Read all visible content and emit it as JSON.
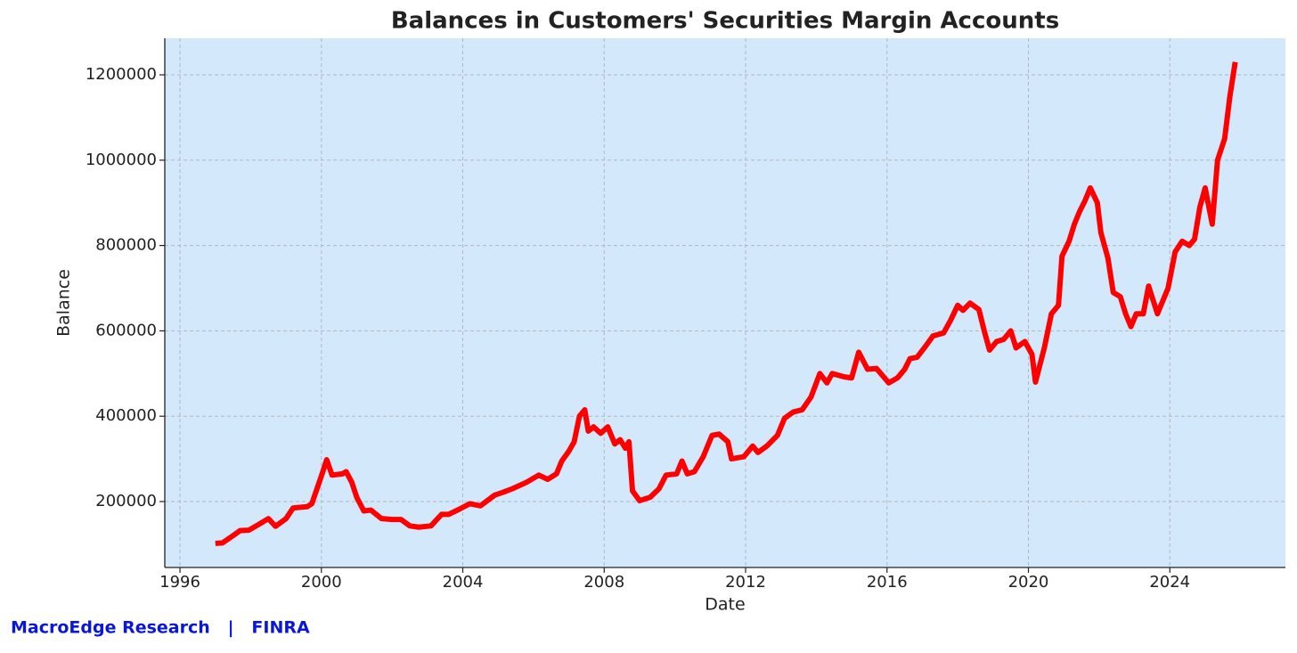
{
  "chart_data": {
    "type": "line",
    "title": "Balances in Customers' Securities Margin Accounts",
    "x_label": "Date",
    "y_label": "Balance",
    "source": "MacroEdge Research   |   FINRA",
    "grid": true,
    "background": "#d4e8fb",
    "xlim": [
      1995.57,
      2027.27
    ],
    "ylim": [
      45500,
      1285600
    ],
    "xticks": [
      1996,
      2000,
      2004,
      2008,
      2012,
      2016,
      2020,
      2024
    ],
    "yticks": [
      200000,
      400000,
      600000,
      800000,
      1000000,
      1200000
    ],
    "x": [
      1997.0,
      1997.2,
      1997.5,
      1997.7,
      1997.95,
      1998.2,
      1998.5,
      1998.7,
      1999.0,
      1999.2,
      1999.6,
      1999.73,
      2000.0,
      2000.15,
      2000.3,
      2000.6,
      2000.7,
      2000.86,
      2001.0,
      2001.2,
      2001.4,
      2001.7,
      2002.0,
      2002.25,
      2002.5,
      2002.75,
      2003.1,
      2003.4,
      2003.6,
      2003.9,
      2004.2,
      2004.5,
      2004.9,
      2005.15,
      2005.4,
      2005.8,
      2006.15,
      2006.4,
      2006.65,
      2006.8,
      2007.0,
      2007.15,
      2007.3,
      2007.45,
      2007.55,
      2007.7,
      2007.9,
      2008.1,
      2008.3,
      2008.45,
      2008.6,
      2008.7,
      2008.8,
      2009.0,
      2009.3,
      2009.55,
      2009.75,
      2010.05,
      2010.2,
      2010.35,
      2010.55,
      2010.8,
      2011.05,
      2011.25,
      2011.5,
      2011.6,
      2011.95,
      2012.2,
      2012.35,
      2012.6,
      2012.9,
      2013.1,
      2013.35,
      2013.6,
      2013.85,
      2014.1,
      2014.3,
      2014.45,
      2014.8,
      2015.0,
      2015.2,
      2015.45,
      2015.7,
      2016.05,
      2016.3,
      2016.5,
      2016.65,
      2016.85,
      2017.1,
      2017.3,
      2017.6,
      2017.8,
      2018.0,
      2018.15,
      2018.35,
      2018.6,
      2018.75,
      2018.9,
      2019.1,
      2019.3,
      2019.5,
      2019.65,
      2019.9,
      2020.1,
      2020.2,
      2020.45,
      2020.65,
      2020.85,
      2020.95,
      2021.15,
      2021.3,
      2021.45,
      2021.6,
      2021.75,
      2021.95,
      2022.05,
      2022.25,
      2022.4,
      2022.6,
      2022.75,
      2022.9,
      2023.05,
      2023.25,
      2023.4,
      2023.65,
      2023.95,
      2024.15,
      2024.35,
      2024.55,
      2024.7,
      2024.85,
      2025.0,
      2025.2,
      2025.35,
      2025.55,
      2025.7,
      2025.85
    ],
    "series": [
      {
        "name": "Balance",
        "color": "#ff0000",
        "values": [
          102000,
          103000,
          120000,
          132000,
          133000,
          145000,
          160000,
          142000,
          160000,
          185000,
          188000,
          195000,
          260000,
          298000,
          262000,
          265000,
          270000,
          245000,
          210000,
          178000,
          180000,
          160000,
          158000,
          158000,
          143000,
          140000,
          143000,
          170000,
          170000,
          182000,
          195000,
          190000,
          215000,
          222000,
          230000,
          245000,
          262000,
          252000,
          265000,
          295000,
          318000,
          340000,
          400000,
          415000,
          365000,
          375000,
          360000,
          375000,
          335000,
          345000,
          325000,
          340000,
          225000,
          202000,
          210000,
          230000,
          262000,
          265000,
          295000,
          265000,
          270000,
          305000,
          355000,
          358000,
          340000,
          300000,
          305000,
          330000,
          315000,
          330000,
          355000,
          395000,
          410000,
          415000,
          445000,
          500000,
          478000,
          500000,
          492000,
          490000,
          550000,
          510000,
          512000,
          478000,
          490000,
          510000,
          535000,
          538000,
          565000,
          588000,
          595000,
          625000,
          660000,
          648000,
          665000,
          650000,
          600000,
          555000,
          575000,
          580000,
          600000,
          560000,
          575000,
          545000,
          480000,
          560000,
          640000,
          660000,
          775000,
          810000,
          850000,
          880000,
          905000,
          935000,
          900000,
          830000,
          770000,
          690000,
          680000,
          640000,
          610000,
          640000,
          640000,
          705000,
          640000,
          700000,
          785000,
          810000,
          800000,
          815000,
          890000,
          935000,
          850000,
          1000000,
          1050000,
          1150000,
          1230000
        ]
      }
    ]
  }
}
